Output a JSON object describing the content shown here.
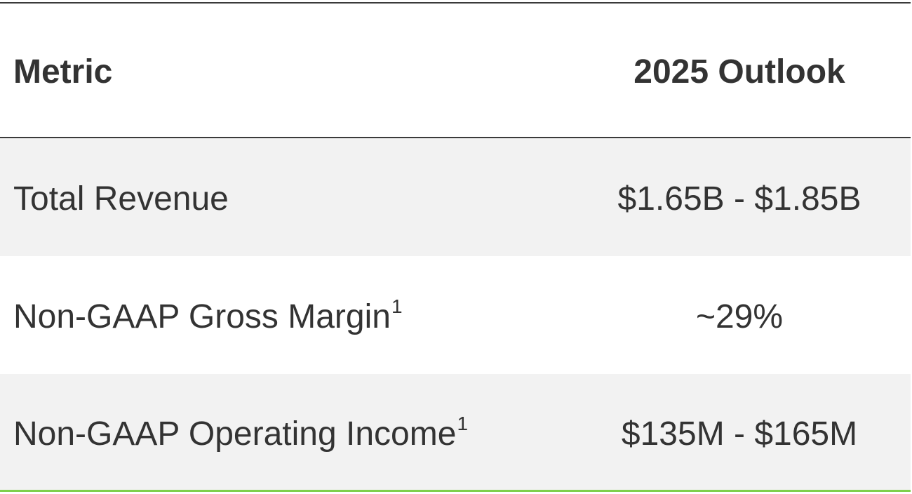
{
  "table": {
    "header": {
      "metric": "Metric",
      "outlook": "2025 Outlook"
    },
    "rows": [
      {
        "metric": "Total Revenue",
        "footnote": "",
        "value": "$1.65B - $1.85B"
      },
      {
        "metric": "Non-GAAP Gross Margin",
        "footnote": "1",
        "value": "~29%"
      },
      {
        "metric": "Non-GAAP Operating Income",
        "footnote": "1",
        "value": "$135M - $165M"
      }
    ]
  },
  "colors": {
    "text": "#333333",
    "rule": "#3a3a3a",
    "shaded_row": "#f2f2f2",
    "accent_rule": "#7ed04b"
  }
}
